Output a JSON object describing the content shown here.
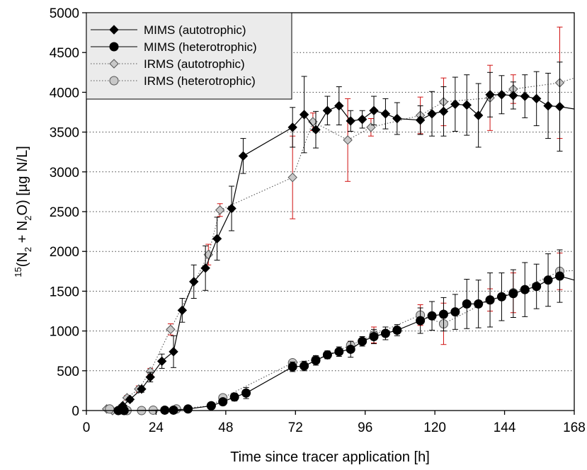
{
  "chart_data": {
    "type": "line",
    "xlabel": "Time since tracer application [h]",
    "ylabel_parts": {
      "sup1": "15",
      "pre": "(N",
      "sub1": "2",
      "mid": " + N",
      "sub2": "2",
      "post": "O) [µg N/L]"
    },
    "xlim": [
      0,
      168
    ],
    "ylim": [
      0,
      5000
    ],
    "x_ticks": [
      0,
      24,
      48,
      72,
      96,
      120,
      144,
      168
    ],
    "y_ticks": [
      0,
      500,
      1000,
      1500,
      2000,
      2500,
      3000,
      3500,
      4000,
      4500,
      5000
    ],
    "grid": "horizontal-dotted",
    "legend_position": "top-left",
    "series": [
      {
        "name": "MIMS (autotrophic)",
        "marker": "diamond",
        "fill": "#000000",
        "line": "solid",
        "error_color": "#000000",
        "points": [
          {
            "x": 11,
            "y": 0,
            "e": 0
          },
          {
            "x": 12.5,
            "y": 60,
            "e": 20
          },
          {
            "x": 15,
            "y": 140,
            "e": 30
          },
          {
            "x": 19,
            "y": 270,
            "e": 40
          },
          {
            "x": 22,
            "y": 420,
            "e": 60
          },
          {
            "x": 26,
            "y": 620,
            "e": 90
          },
          {
            "x": 30,
            "y": 740,
            "e": 200
          },
          {
            "x": 33,
            "y": 1260,
            "e": 150
          },
          {
            "x": 37,
            "y": 1620,
            "e": 210
          },
          {
            "x": 41,
            "y": 1790,
            "e": 280
          },
          {
            "x": 45,
            "y": 2160,
            "e": 270
          },
          {
            "x": 50,
            "y": 2540,
            "e": 280
          },
          {
            "x": 54,
            "y": 3200,
            "e": 220
          },
          {
            "x": 71,
            "y": 3560,
            "e": 250
          },
          {
            "x": 75,
            "y": 3720,
            "e": 480
          },
          {
            "x": 79,
            "y": 3530,
            "e": 230
          },
          {
            "x": 83,
            "y": 3770,
            "e": 180
          },
          {
            "x": 87,
            "y": 3830,
            "e": 240
          },
          {
            "x": 91,
            "y": 3640,
            "e": 130
          },
          {
            "x": 95,
            "y": 3660,
            "e": 110
          },
          {
            "x": 99,
            "y": 3770,
            "e": 180
          },
          {
            "x": 103,
            "y": 3730,
            "e": 190
          },
          {
            "x": 107,
            "y": 3670,
            "e": 200
          },
          {
            "x": 115,
            "y": 3650,
            "e": 180
          },
          {
            "x": 119,
            "y": 3730,
            "e": 280
          },
          {
            "x": 123,
            "y": 3760,
            "e": 310
          },
          {
            "x": 127,
            "y": 3850,
            "e": 340
          },
          {
            "x": 131,
            "y": 3840,
            "e": 380
          },
          {
            "x": 135,
            "y": 3710,
            "e": 400
          },
          {
            "x": 139,
            "y": 3970,
            "e": 280
          },
          {
            "x": 143,
            "y": 3970,
            "e": 240
          },
          {
            "x": 147,
            "y": 3960,
            "e": 170
          },
          {
            "x": 151,
            "y": 3950,
            "e": 270
          },
          {
            "x": 155,
            "y": 3920,
            "e": 340
          },
          {
            "x": 159,
            "y": 3830,
            "e": 410
          },
          {
            "x": 163,
            "y": 3820,
            "e": 560
          },
          {
            "x": 168,
            "y": 3790,
            "e": 0
          }
        ]
      },
      {
        "name": "MIMS (heterotrophic)",
        "marker": "circle",
        "fill": "#000000",
        "line": "solid",
        "error_color": "#000000",
        "points": [
          {
            "x": 11,
            "y": 0,
            "e": 0
          },
          {
            "x": 13,
            "y": 0,
            "e": 0
          },
          {
            "x": 27,
            "y": 5,
            "e": 0
          },
          {
            "x": 30,
            "y": 5,
            "e": 0
          },
          {
            "x": 35,
            "y": 20,
            "e": 0
          },
          {
            "x": 43,
            "y": 60,
            "e": 0
          },
          {
            "x": 47,
            "y": 110,
            "e": 0
          },
          {
            "x": 51,
            "y": 170,
            "e": 50
          },
          {
            "x": 55,
            "y": 220,
            "e": 70
          },
          {
            "x": 71,
            "y": 550,
            "e": 60
          },
          {
            "x": 75,
            "y": 560,
            "e": 60
          },
          {
            "x": 79,
            "y": 630,
            "e": 60
          },
          {
            "x": 83,
            "y": 700,
            "e": 50
          },
          {
            "x": 87,
            "y": 740,
            "e": 60
          },
          {
            "x": 91,
            "y": 770,
            "e": 100
          },
          {
            "x": 95,
            "y": 870,
            "e": 60
          },
          {
            "x": 99,
            "y": 930,
            "e": 90
          },
          {
            "x": 103,
            "y": 970,
            "e": 80
          },
          {
            "x": 107,
            "y": 1010,
            "e": 70
          },
          {
            "x": 115,
            "y": 1130,
            "e": 160
          },
          {
            "x": 119,
            "y": 1190,
            "e": 180
          },
          {
            "x": 123,
            "y": 1210,
            "e": 210
          },
          {
            "x": 127,
            "y": 1240,
            "e": 220
          },
          {
            "x": 131,
            "y": 1340,
            "e": 310
          },
          {
            "x": 135,
            "y": 1340,
            "e": 300
          },
          {
            "x": 139,
            "y": 1390,
            "e": 340
          },
          {
            "x": 143,
            "y": 1430,
            "e": 300
          },
          {
            "x": 147,
            "y": 1470,
            "e": 300
          },
          {
            "x": 151,
            "y": 1520,
            "e": 340
          },
          {
            "x": 155,
            "y": 1560,
            "e": 280
          },
          {
            "x": 159,
            "y": 1640,
            "e": 330
          },
          {
            "x": 163,
            "y": 1690,
            "e": 330
          },
          {
            "x": 168,
            "y": 1640,
            "e": 0
          }
        ]
      },
      {
        "name": "IRMS (autotrophic)",
        "marker": "diamond",
        "fill": "#c8c8c8",
        "line": "dotted",
        "error_color": "#d01010",
        "points": [
          {
            "x": 7,
            "y": 20,
            "e": 0
          },
          {
            "x": 9,
            "y": 0,
            "e": 0
          },
          {
            "x": 14,
            "y": 160,
            "e": 30
          },
          {
            "x": 18,
            "y": 270,
            "e": 40
          },
          {
            "x": 22,
            "y": 490,
            "e": 40
          },
          {
            "x": 29,
            "y": 1020,
            "e": 70
          },
          {
            "x": 42,
            "y": 1960,
            "e": 130
          },
          {
            "x": 46,
            "y": 2520,
            "e": 80
          },
          {
            "x": 71,
            "y": 2930,
            "e": 520
          },
          {
            "x": 78,
            "y": 3630,
            "e": 110
          },
          {
            "x": 90,
            "y": 3400,
            "e": 520
          },
          {
            "x": 98,
            "y": 3560,
            "e": 110
          },
          {
            "x": 115,
            "y": 3710,
            "e": 230
          },
          {
            "x": 123,
            "y": 3880,
            "e": 300
          },
          {
            "x": 139,
            "y": 3930,
            "e": 410
          },
          {
            "x": 147,
            "y": 4040,
            "e": 180
          },
          {
            "x": 163,
            "y": 4120,
            "e": 700
          },
          {
            "x": 168,
            "y": 4180,
            "e": 0
          }
        ]
      },
      {
        "name": "IRMS (heterotrophic)",
        "marker": "circle",
        "fill": "#c8c8c8",
        "line": "dotted",
        "error_color": "#d01010",
        "points": [
          {
            "x": 8,
            "y": 20,
            "e": 0
          },
          {
            "x": 14,
            "y": 0,
            "e": 0
          },
          {
            "x": 19,
            "y": 0,
            "e": 0
          },
          {
            "x": 23,
            "y": 5,
            "e": 0
          },
          {
            "x": 31,
            "y": 20,
            "e": 0
          },
          {
            "x": 43,
            "y": 60,
            "e": 0
          },
          {
            "x": 47,
            "y": 160,
            "e": 0
          },
          {
            "x": 71,
            "y": 600,
            "e": 40
          },
          {
            "x": 79,
            "y": 640,
            "e": 40
          },
          {
            "x": 91,
            "y": 820,
            "e": 50
          },
          {
            "x": 99,
            "y": 950,
            "e": 100
          },
          {
            "x": 115,
            "y": 1200,
            "e": 130
          },
          {
            "x": 123,
            "y": 1090,
            "e": 260
          },
          {
            "x": 139,
            "y": 1390,
            "e": 140
          },
          {
            "x": 147,
            "y": 1480,
            "e": 250
          },
          {
            "x": 163,
            "y": 1750,
            "e": 230
          },
          {
            "x": 168,
            "y": 1760,
            "e": 0
          }
        ]
      }
    ]
  }
}
